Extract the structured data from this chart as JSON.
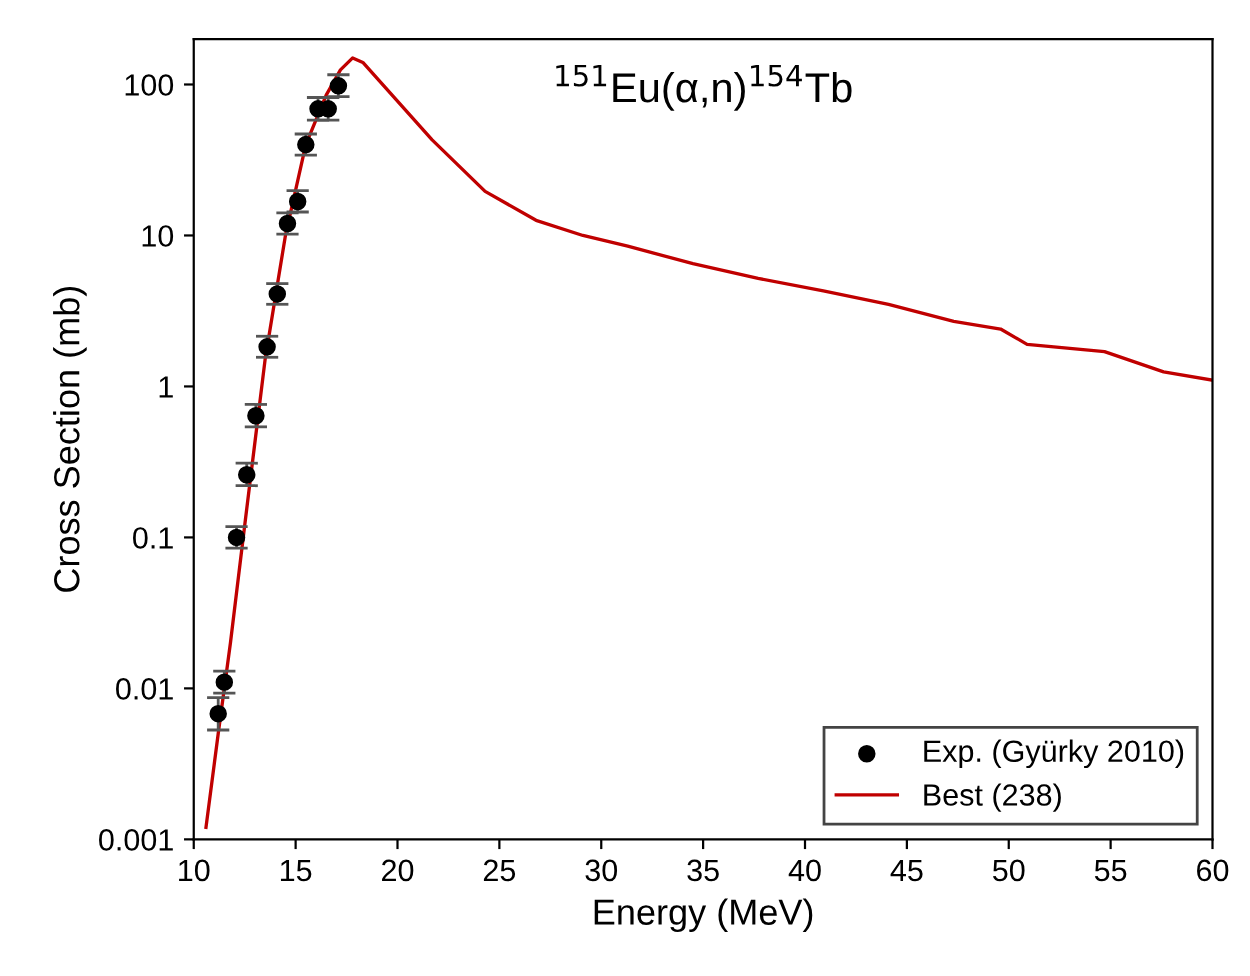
{
  "chart_data": {
    "type": "line",
    "title": "$^{151}$Eu(α,n)$^{154}$Tb",
    "xlabel": "Energy (MeV)",
    "ylabel": "Cross Section (mb)",
    "log": "y",
    "xlim": [
      10,
      60
    ],
    "xticks": [
      10,
      15,
      20,
      25,
      30,
      35,
      40,
      45,
      50,
      55,
      60
    ],
    "ylim": [
      0.001,
      200
    ],
    "yticks": [
      0.001,
      0.01,
      0.1,
      1,
      10,
      100
    ],
    "grid": false,
    "legend": "bottom right",
    "series": [
      {
        "name": "Exp. (Gyürky 2010)",
        "type": "scatter",
        "color": "#000000",
        "marker": "circle",
        "x": [
          11.2,
          11.5,
          12.1,
          12.6,
          13.05,
          13.6,
          14.1,
          14.6,
          15.1,
          15.5,
          16.1,
          16.6,
          17.1
        ],
        "values": [
          0.0068,
          0.011,
          0.1,
          0.26,
          0.64,
          1.83,
          4.1,
          12,
          16.8,
          40,
          69,
          69,
          98
        ],
        "errors": [
          [
            0.0053,
            0.0087
          ],
          [
            0.0093,
            0.013
          ],
          [
            0.085,
            0.118
          ],
          [
            0.22,
            0.31
          ],
          [
            0.54,
            0.76
          ],
          [
            1.56,
            2.15
          ],
          [
            3.5,
            4.8
          ],
          [
            10.2,
            14.1
          ],
          [
            14.3,
            19.8
          ],
          [
            34,
            47
          ],
          [
            58,
            82
          ],
          [
            58,
            82
          ],
          [
            83,
            116
          ]
        ]
      },
      {
        "name": "Best (238)",
        "color": "#c00000",
        "marker": "none",
        "line_style": "solid",
        "x": [
          10.6,
          11.2,
          11.8,
          12.5,
          13.5,
          14.5,
          15.5,
          16.5,
          17.2,
          17.8,
          18.3,
          19.1,
          21.7,
          24.3,
          26.8,
          29.1,
          31.3,
          34.5,
          37.7,
          40.9,
          44.1,
          47.3,
          49.6,
          50.9,
          54.7,
          57.6,
          60
        ],
        "values": [
          0.0012,
          0.005,
          0.02,
          0.12,
          1.5,
          10,
          40,
          85,
          125,
          150,
          140,
          106,
          43,
          19.6,
          12.6,
          10,
          8.5,
          6.5,
          5.2,
          4.3,
          3.5,
          2.7,
          2.4,
          1.9,
          1.7,
          1.25,
          1.1
        ]
      }
    ]
  }
}
